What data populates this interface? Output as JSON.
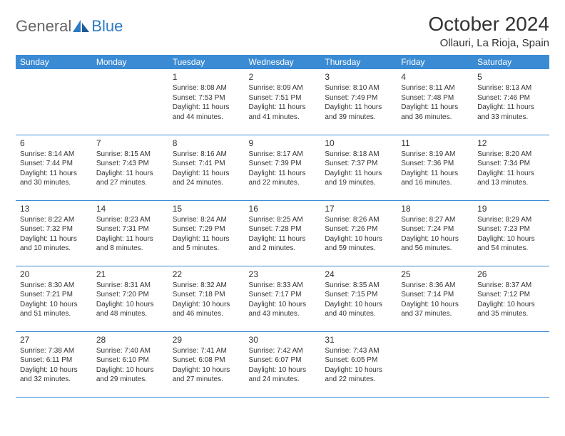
{
  "brand": {
    "part1": "General",
    "part2": "Blue"
  },
  "title": "October 2024",
  "location": "Ollauri, La Rioja, Spain",
  "colors": {
    "header_bg": "#3b8bd4",
    "header_text": "#ffffff",
    "cell_border": "#3b8bd4",
    "text": "#333333",
    "brand_gray": "#666666",
    "brand_blue": "#2c7bc4",
    "background": "#ffffff"
  },
  "typography": {
    "title_fontsize": 28,
    "location_fontsize": 15,
    "header_fontsize": 12,
    "daynum_fontsize": 12,
    "cell_fontsize": 10
  },
  "dayHeaders": [
    "Sunday",
    "Monday",
    "Tuesday",
    "Wednesday",
    "Thursday",
    "Friday",
    "Saturday"
  ],
  "firstDayOffset": 2,
  "days": [
    {
      "n": 1,
      "sunrise": "8:08 AM",
      "sunset": "7:53 PM",
      "daylight": "11 hours and 44 minutes."
    },
    {
      "n": 2,
      "sunrise": "8:09 AM",
      "sunset": "7:51 PM",
      "daylight": "11 hours and 41 minutes."
    },
    {
      "n": 3,
      "sunrise": "8:10 AM",
      "sunset": "7:49 PM",
      "daylight": "11 hours and 39 minutes."
    },
    {
      "n": 4,
      "sunrise": "8:11 AM",
      "sunset": "7:48 PM",
      "daylight": "11 hours and 36 minutes."
    },
    {
      "n": 5,
      "sunrise": "8:13 AM",
      "sunset": "7:46 PM",
      "daylight": "11 hours and 33 minutes."
    },
    {
      "n": 6,
      "sunrise": "8:14 AM",
      "sunset": "7:44 PM",
      "daylight": "11 hours and 30 minutes."
    },
    {
      "n": 7,
      "sunrise": "8:15 AM",
      "sunset": "7:43 PM",
      "daylight": "11 hours and 27 minutes."
    },
    {
      "n": 8,
      "sunrise": "8:16 AM",
      "sunset": "7:41 PM",
      "daylight": "11 hours and 24 minutes."
    },
    {
      "n": 9,
      "sunrise": "8:17 AM",
      "sunset": "7:39 PM",
      "daylight": "11 hours and 22 minutes."
    },
    {
      "n": 10,
      "sunrise": "8:18 AM",
      "sunset": "7:37 PM",
      "daylight": "11 hours and 19 minutes."
    },
    {
      "n": 11,
      "sunrise": "8:19 AM",
      "sunset": "7:36 PM",
      "daylight": "11 hours and 16 minutes."
    },
    {
      "n": 12,
      "sunrise": "8:20 AM",
      "sunset": "7:34 PM",
      "daylight": "11 hours and 13 minutes."
    },
    {
      "n": 13,
      "sunrise": "8:22 AM",
      "sunset": "7:32 PM",
      "daylight": "11 hours and 10 minutes."
    },
    {
      "n": 14,
      "sunrise": "8:23 AM",
      "sunset": "7:31 PM",
      "daylight": "11 hours and 8 minutes."
    },
    {
      "n": 15,
      "sunrise": "8:24 AM",
      "sunset": "7:29 PM",
      "daylight": "11 hours and 5 minutes."
    },
    {
      "n": 16,
      "sunrise": "8:25 AM",
      "sunset": "7:28 PM",
      "daylight": "11 hours and 2 minutes."
    },
    {
      "n": 17,
      "sunrise": "8:26 AM",
      "sunset": "7:26 PM",
      "daylight": "10 hours and 59 minutes."
    },
    {
      "n": 18,
      "sunrise": "8:27 AM",
      "sunset": "7:24 PM",
      "daylight": "10 hours and 56 minutes."
    },
    {
      "n": 19,
      "sunrise": "8:29 AM",
      "sunset": "7:23 PM",
      "daylight": "10 hours and 54 minutes."
    },
    {
      "n": 20,
      "sunrise": "8:30 AM",
      "sunset": "7:21 PM",
      "daylight": "10 hours and 51 minutes."
    },
    {
      "n": 21,
      "sunrise": "8:31 AM",
      "sunset": "7:20 PM",
      "daylight": "10 hours and 48 minutes."
    },
    {
      "n": 22,
      "sunrise": "8:32 AM",
      "sunset": "7:18 PM",
      "daylight": "10 hours and 46 minutes."
    },
    {
      "n": 23,
      "sunrise": "8:33 AM",
      "sunset": "7:17 PM",
      "daylight": "10 hours and 43 minutes."
    },
    {
      "n": 24,
      "sunrise": "8:35 AM",
      "sunset": "7:15 PM",
      "daylight": "10 hours and 40 minutes."
    },
    {
      "n": 25,
      "sunrise": "8:36 AM",
      "sunset": "7:14 PM",
      "daylight": "10 hours and 37 minutes."
    },
    {
      "n": 26,
      "sunrise": "8:37 AM",
      "sunset": "7:12 PM",
      "daylight": "10 hours and 35 minutes."
    },
    {
      "n": 27,
      "sunrise": "7:38 AM",
      "sunset": "6:11 PM",
      "daylight": "10 hours and 32 minutes."
    },
    {
      "n": 28,
      "sunrise": "7:40 AM",
      "sunset": "6:10 PM",
      "daylight": "10 hours and 29 minutes."
    },
    {
      "n": 29,
      "sunrise": "7:41 AM",
      "sunset": "6:08 PM",
      "daylight": "10 hours and 27 minutes."
    },
    {
      "n": 30,
      "sunrise": "7:42 AM",
      "sunset": "6:07 PM",
      "daylight": "10 hours and 24 minutes."
    },
    {
      "n": 31,
      "sunrise": "7:43 AM",
      "sunset": "6:05 PM",
      "daylight": "10 hours and 22 minutes."
    }
  ]
}
